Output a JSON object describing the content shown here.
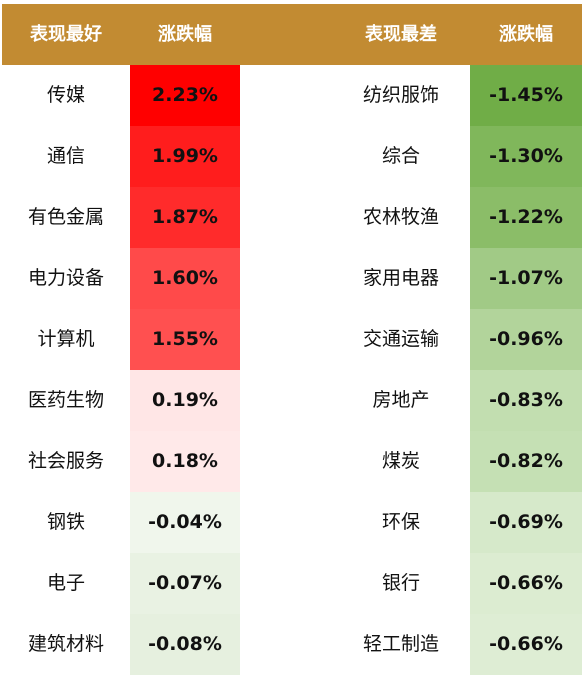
{
  "chart_data": {
    "type": "table",
    "headers": {
      "best_name": "表现最好",
      "best_change": "涨跌幅",
      "worst_name": "表现最差",
      "worst_change": "涨跌幅"
    },
    "best": [
      {
        "name": "传媒",
        "change": "2.23%",
        "value": 2.23,
        "color": "#ff0000"
      },
      {
        "name": "通信",
        "change": "1.99%",
        "value": 1.99,
        "color": "#ff1d1d"
      },
      {
        "name": "有色金属",
        "change": "1.87%",
        "value": 1.87,
        "color": "#ff2b2b"
      },
      {
        "name": "电力设备",
        "change": "1.60%",
        "value": 1.6,
        "color": "#ff4a4a"
      },
      {
        "name": "计算机",
        "change": "1.55%",
        "value": 1.55,
        "color": "#ff5050"
      },
      {
        "name": "医药生物",
        "change": "0.19%",
        "value": 0.19,
        "color": "#ffe6e6"
      },
      {
        "name": "社会服务",
        "change": "0.18%",
        "value": 0.18,
        "color": "#ffe9e9"
      },
      {
        "name": "钢铁",
        "change": "-0.04%",
        "value": -0.04,
        "color": "#f0f6ec"
      },
      {
        "name": "电子",
        "change": "-0.07%",
        "value": -0.07,
        "color": "#e9f2e3"
      },
      {
        "name": "建筑材料",
        "change": "-0.08%",
        "value": -0.08,
        "color": "#e6f0df"
      }
    ],
    "worst": [
      {
        "name": "纺织服饰",
        "change": "-1.45%",
        "value": -1.45,
        "color": "#70ad47"
      },
      {
        "name": "综合",
        "change": "-1.30%",
        "value": -1.3,
        "color": "#80b75b"
      },
      {
        "name": "农林牧渔",
        "change": "-1.22%",
        "value": -1.22,
        "color": "#8bbd68"
      },
      {
        "name": "家用电器",
        "change": "-1.07%",
        "value": -1.07,
        "color": "#a1ca86"
      },
      {
        "name": "交通运输",
        "change": "-0.96%",
        "value": -0.96,
        "color": "#b2d49b"
      },
      {
        "name": "房地产",
        "change": "-0.83%",
        "value": -0.83,
        "color": "#c2deb0"
      },
      {
        "name": "煤炭",
        "change": "-0.82%",
        "value": -0.82,
        "color": "#c5e0b4"
      },
      {
        "name": "环保",
        "change": "-0.69%",
        "value": -0.69,
        "color": "#d6e9ca"
      },
      {
        "name": "银行",
        "change": "-0.66%",
        "value": -0.66,
        "color": "#dcecd1"
      },
      {
        "name": "轻工制造",
        "change": "-0.66%",
        "value": -0.66,
        "color": "#deedd4"
      }
    ],
    "header_color": "#c28b32"
  }
}
